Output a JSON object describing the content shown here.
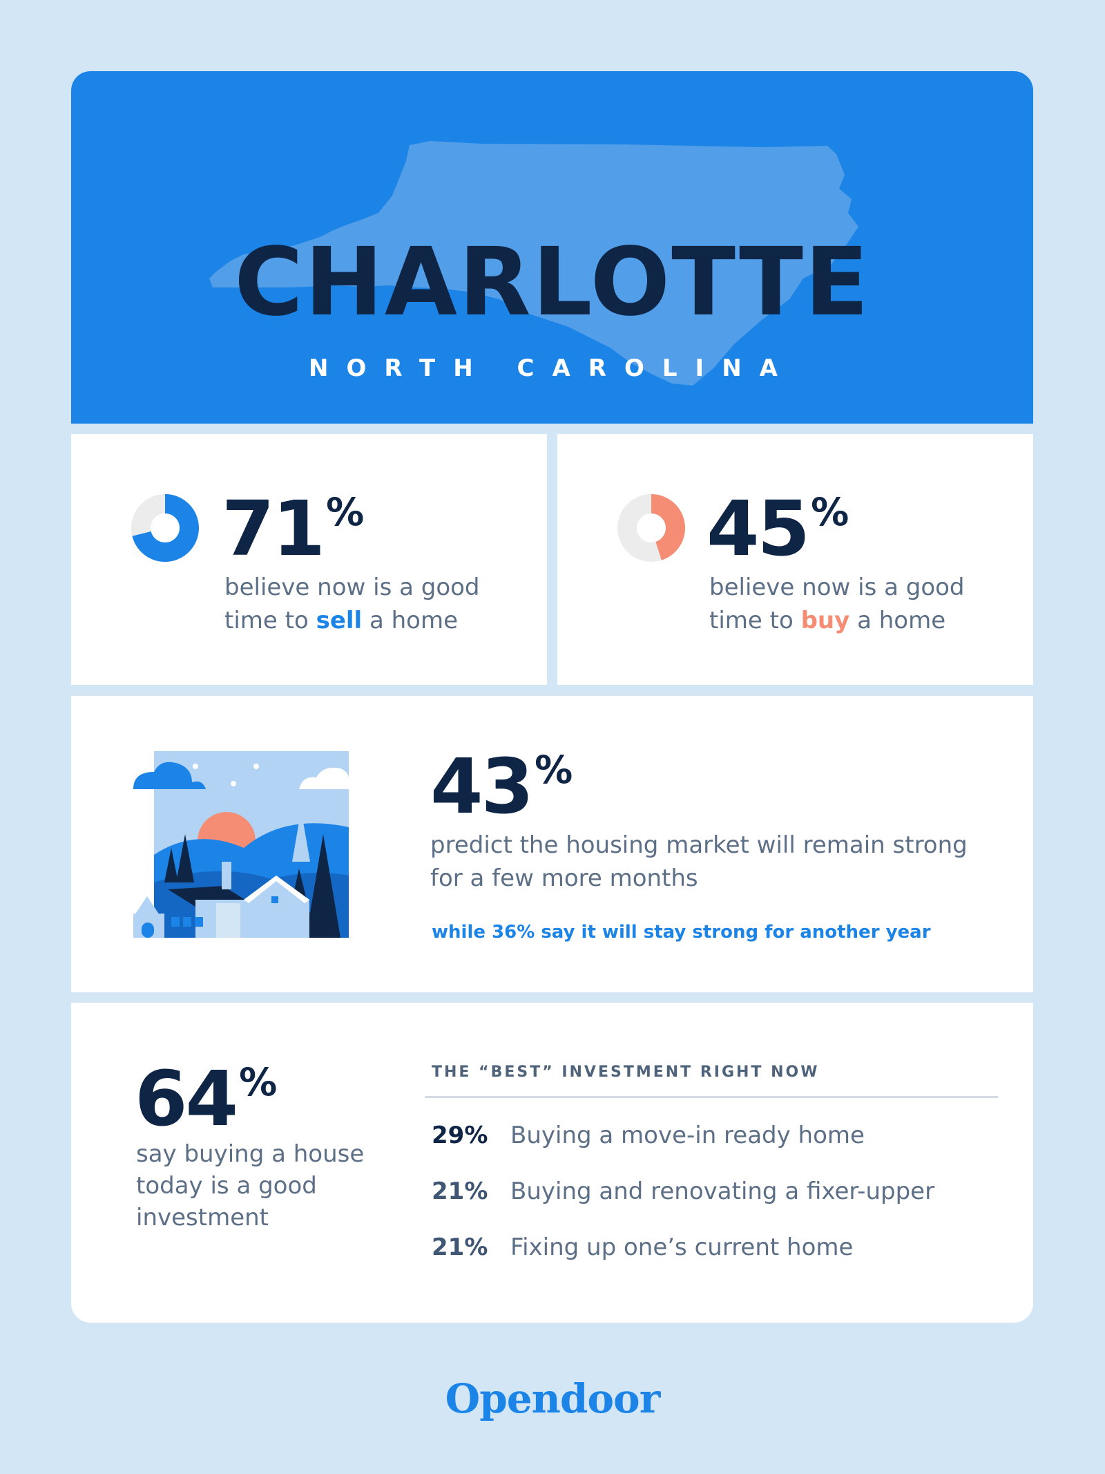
{
  "header": {
    "city": "CHARLOTTE",
    "state": "NORTH CAROLINA"
  },
  "sell": {
    "percent": "71",
    "percent_value": 71,
    "symbol": "%",
    "line1": "believe now is a good",
    "line2_pre": "time to ",
    "line2_hl": "sell",
    "line2_post": " a home",
    "color": "#1b84e6"
  },
  "buy": {
    "percent": "45",
    "percent_value": 45,
    "symbol": "%",
    "line1": "believe now is a good",
    "line2_pre": "time to ",
    "line2_hl": "buy",
    "line2_post": " a home",
    "color": "#f48d74"
  },
  "market": {
    "percent": "43",
    "symbol": "%",
    "line1": "predict the housing market will remain strong",
    "line2": "for a few more months",
    "sub": "while 36% say it will stay strong for another year",
    "illustration": "houses-sunset-illustration"
  },
  "investment": {
    "percent": "64",
    "symbol": "%",
    "line1": "say buying a house",
    "line2": "today is a good",
    "line3": "investment",
    "title": "THE “BEST” INVESTMENT RIGHT NOW",
    "rows": [
      {
        "pct": "29%",
        "label": "Buying a move-in ready home"
      },
      {
        "pct": "21%",
        "label": "Buying and renovating a fixer-upper"
      },
      {
        "pct": "21%",
        "label": "Fixing up one’s current home"
      }
    ]
  },
  "brand": "Opendoor",
  "colors": {
    "background": "#d2e6f6",
    "header": "#1b84e6",
    "state_shape": "#529ee8",
    "navy": "#0f2546",
    "gray_text": "#5c6f86"
  }
}
